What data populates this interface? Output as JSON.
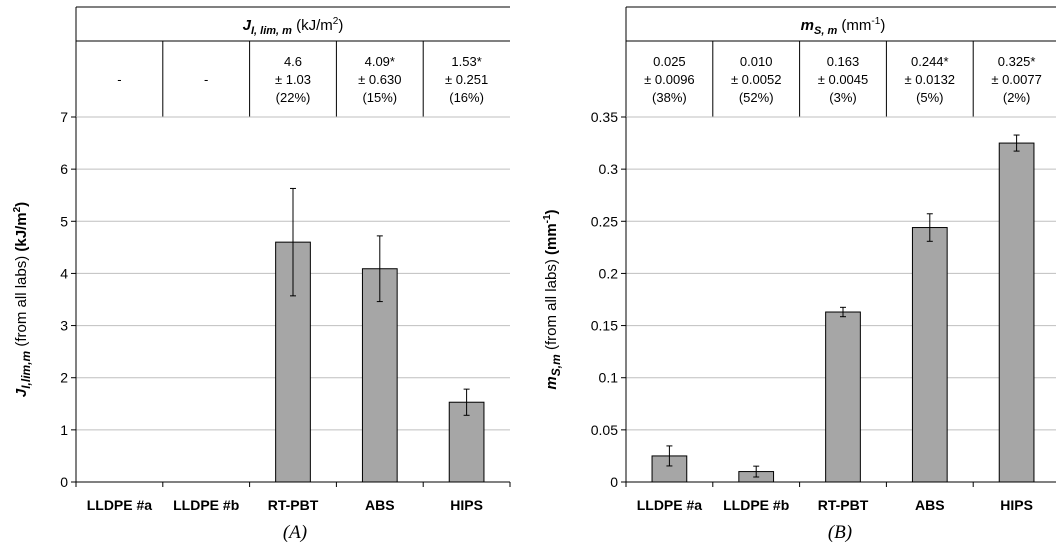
{
  "chart_data": [
    {
      "type": "bar",
      "caption": "(A)",
      "table_header": {
        "sym": "J",
        "sub": "I, lim, m",
        "unit_pre": " (kJ/m",
        "unit_sup": "2",
        "unit_post": ")"
      },
      "ylabel": {
        "sym": "J",
        "sub": "I,lim,m",
        "mid": " (from all labs) ",
        "unit_pre": "(kJ/m",
        "unit_sup": "2",
        "unit_post": ")"
      },
      "categories": [
        "LLDPE #a",
        "LLDPE #b",
        "RT-PBT",
        "ABS",
        "HIPS"
      ],
      "values": [
        null,
        null,
        4.6,
        4.09,
        1.53
      ],
      "errors": [
        null,
        null,
        1.03,
        0.63,
        0.251
      ],
      "table": [
        [
          "-"
        ],
        [
          "-"
        ],
        [
          "4.6",
          "± 1.03",
          "(22%)"
        ],
        [
          "4.09*",
          "± 0.630",
          "(15%)"
        ],
        [
          "1.53*",
          "± 0.251",
          "(16%)"
        ]
      ],
      "ylim": [
        0,
        7
      ],
      "yticks": [
        "0",
        "1",
        "2",
        "3",
        "4",
        "5",
        "6",
        "7"
      ],
      "grid": true,
      "bar_color": "#a6a6a6"
    },
    {
      "type": "bar",
      "caption": "(B)",
      "table_header": {
        "sym": "m",
        "sub": "S, m",
        "unit_pre": " (mm",
        "unit_sup": "-1",
        "unit_post": ")"
      },
      "ylabel": {
        "sym": "m",
        "sub": "S,m",
        "mid": " (from all labs) ",
        "unit_pre": "(mm",
        "unit_sup": "-1",
        "unit_post": ")"
      },
      "categories": [
        "LLDPE #a",
        "LLDPE #b",
        "RT-PBT",
        "ABS",
        "HIPS"
      ],
      "values": [
        0.025,
        0.01,
        0.163,
        0.244,
        0.325
      ],
      "errors": [
        0.0096,
        0.0052,
        0.0045,
        0.0132,
        0.0077
      ],
      "table": [
        [
          "0.025",
          "± 0.0096",
          "(38%)"
        ],
        [
          "0.010",
          "± 0.0052",
          "(52%)"
        ],
        [
          "0.163",
          "± 0.0045",
          "(3%)"
        ],
        [
          "0.244*",
          "± 0.0132",
          "(5%)"
        ],
        [
          "0.325*",
          "± 0.0077",
          "(2%)"
        ]
      ],
      "ylim": [
        0,
        0.35
      ],
      "yticks": [
        "0",
        "0.05",
        "0.1",
        "0.15",
        "0.2",
        "0.25",
        "0.3",
        "0.35"
      ],
      "grid": true,
      "bar_color": "#a6a6a6"
    }
  ]
}
